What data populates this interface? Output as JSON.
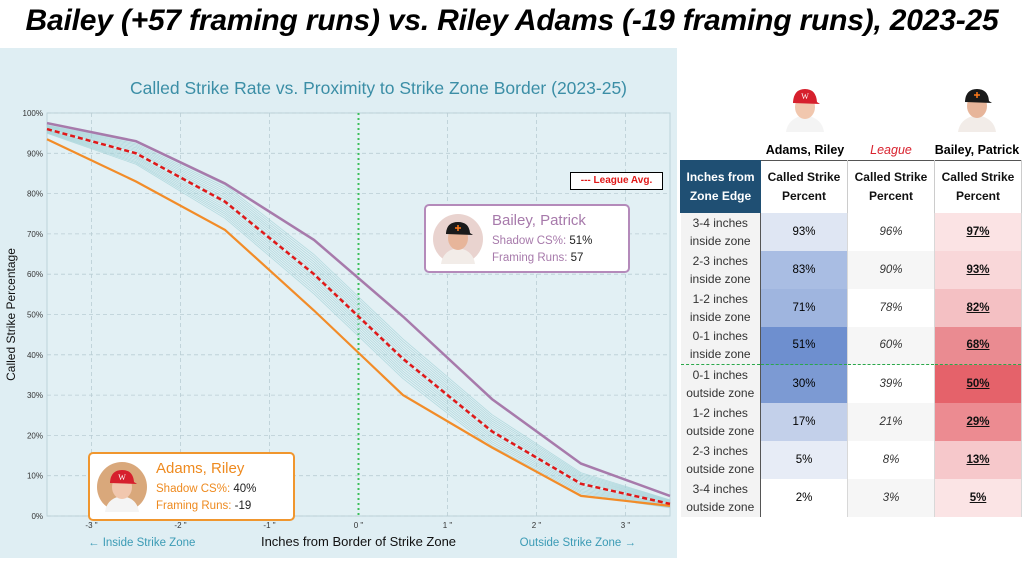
{
  "title": "Bailey (+57 framing runs) vs. Riley Adams (-19 framing runs), 2023-25",
  "colors": {
    "bailey": "#a77aab",
    "adams": "#f28c28",
    "league": "#e01818",
    "spaghetti": "#9fd0d6",
    "zone_line": "#3cbf5a",
    "panel_bg": "#dfeef3"
  },
  "chart_data": {
    "type": "line",
    "title": "Called Strike Rate vs. Proximity to Strike Zone Border (2023-25)",
    "xlabel": "Inches from Border of Strike Zone",
    "ylabel": "Called Strike Percentage",
    "x_note_left": "← Inside Strike Zone",
    "x_note_right": "Outside Strike Zone →",
    "xlim": [
      -3.5,
      3.5
    ],
    "ylim": [
      0,
      100
    ],
    "x_ticks": [
      -3,
      -2,
      -1,
      0,
      1,
      2,
      3
    ],
    "x_tick_labels": [
      "-3 \"",
      "-2 \"",
      "-1 \"",
      "0 \"",
      "1 \"",
      "2 \"",
      "3 \""
    ],
    "y_ticks": [
      0,
      10,
      20,
      30,
      40,
      50,
      60,
      70,
      80,
      90,
      100
    ],
    "y_tick_labels": [
      "0%",
      "10%",
      "20%",
      "30%",
      "40%",
      "50%",
      "60%",
      "70%",
      "80%",
      "90%",
      "100%"
    ],
    "grid": true,
    "zone_border_x": 0,
    "legend": {
      "label": "--- League Avg.",
      "position": "top-right"
    },
    "x": [
      -3.5,
      -2.5,
      -1.5,
      -0.5,
      0.5,
      1.5,
      2.5,
      3.5
    ],
    "series": [
      {
        "name": "Bailey, Patrick",
        "key": "bailey",
        "values": [
          97.5,
          93,
          82.5,
          68.5,
          49.5,
          29,
          13,
          5
        ]
      },
      {
        "name": "League Avg.",
        "key": "league",
        "values": [
          96,
          90,
          78,
          60,
          39,
          21,
          8,
          3
        ]
      },
      {
        "name": "Adams, Riley",
        "key": "adams",
        "values": [
          93.5,
          83,
          71,
          51,
          30,
          17,
          5,
          2.5
        ]
      }
    ],
    "spaghetti_offsets": [
      -4,
      -3,
      -2.5,
      -2,
      -1.5,
      -1,
      -0.5,
      0.5,
      1,
      1.5,
      2,
      2.5,
      3,
      4,
      -3.5,
      3.5
    ],
    "cards": {
      "bailey": {
        "name": "Bailey, Patrick",
        "shadow_label": "Shadow CS%:",
        "shadow_value": "51%",
        "runs_label": "Framing Runs:",
        "runs_value": "57"
      },
      "adams": {
        "name": "Adams, Riley",
        "shadow_label": "Shadow CS%:",
        "shadow_value": "40%",
        "runs_label": "Framing Runs:",
        "runs_value": "-19"
      }
    }
  },
  "table": {
    "player_left": "Adams, Riley",
    "league_label": "League",
    "player_right": "Bailey, Patrick",
    "col_headers": [
      "Inches from Zone Edge",
      "Called Strike Percent",
      "Called Strike Percent",
      "Called Strike Percent"
    ],
    "rows": [
      {
        "label": "3-4 inches inside zone",
        "adams": "93%",
        "league": "96%",
        "bailey": "97%",
        "adams_bg": "#dfe6f3",
        "bailey_bg": "#fbe3e4"
      },
      {
        "label": "2-3 inches inside zone",
        "adams": "83%",
        "league": "90%",
        "bailey": "93%",
        "adams_bg": "#a9bde3",
        "bailey_bg": "#f9d7d9"
      },
      {
        "label": "1-2 inches inside zone",
        "adams": "71%",
        "league": "78%",
        "bailey": "82%",
        "adams_bg": "#9fb5df",
        "bailey_bg": "#f4c0c3"
      },
      {
        "label": "0-1 inches inside zone",
        "adams": "51%",
        "league": "60%",
        "bailey": "68%",
        "adams_bg": "#6e8fcf",
        "bailey_bg": "#ea8b91"
      },
      {
        "label": "0-1 inches outside zone",
        "adams": "30%",
        "league": "39%",
        "bailey": "50%",
        "adams_bg": "#7c9ad3",
        "bailey_bg": "#e5626a"
      },
      {
        "label": "1-2 inches outside zone",
        "adams": "17%",
        "league": "21%",
        "bailey": "29%",
        "adams_bg": "#c3d0ea",
        "bailey_bg": "#ec8b91"
      },
      {
        "label": "2-3 inches outside zone",
        "adams": "5%",
        "league": "8%",
        "bailey": "13%",
        "adams_bg": "#e7ecf6",
        "bailey_bg": "#f6c8cb"
      },
      {
        "label": "3-4 inches outside zone",
        "adams": "2%",
        "league": "3%",
        "bailey": "5%",
        "adams_bg": "#ffffff",
        "bailey_bg": "#fbe4e5"
      }
    ]
  }
}
